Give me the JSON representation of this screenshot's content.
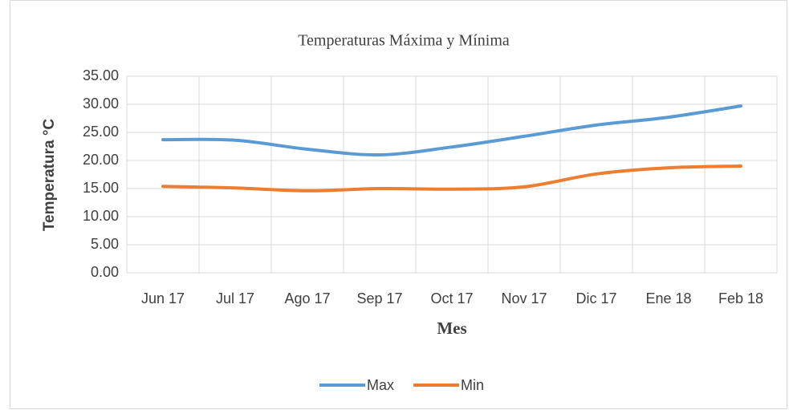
{
  "chart_data": {
    "type": "line",
    "title": "Temperaturas Máxima y Mínima",
    "x_label": "Mes",
    "y_label": "Temperatura °C",
    "categories": [
      "Jun 17",
      "Jul 17",
      "Ago 17",
      "Sep 17",
      "Oct 17",
      "Nov 17",
      "Dic 17",
      "Ene 18",
      "Feb 18"
    ],
    "series": [
      {
        "name": "Max",
        "color": "#5b9bd5",
        "values": [
          23.7,
          23.6,
          22.0,
          21.0,
          22.4,
          24.3,
          26.3,
          27.7,
          29.7
        ]
      },
      {
        "name": "Min",
        "color": "#ed7d31",
        "values": [
          15.4,
          15.1,
          14.6,
          15.0,
          14.9,
          15.3,
          17.6,
          18.7,
          19.0
        ]
      }
    ],
    "ylim": [
      0,
      35
    ],
    "yticks": [
      {
        "value": 0,
        "label": "0.00"
      },
      {
        "value": 5,
        "label": "5.00"
      },
      {
        "value": 10,
        "label": "10.00"
      },
      {
        "value": 15,
        "label": "15.00"
      },
      {
        "value": 20,
        "label": "20.00"
      },
      {
        "value": 25,
        "label": "25.00"
      },
      {
        "value": 30,
        "label": "30.00"
      },
      {
        "value": 35,
        "label": "35.00"
      }
    ],
    "grid": true,
    "legend": "bottom"
  }
}
